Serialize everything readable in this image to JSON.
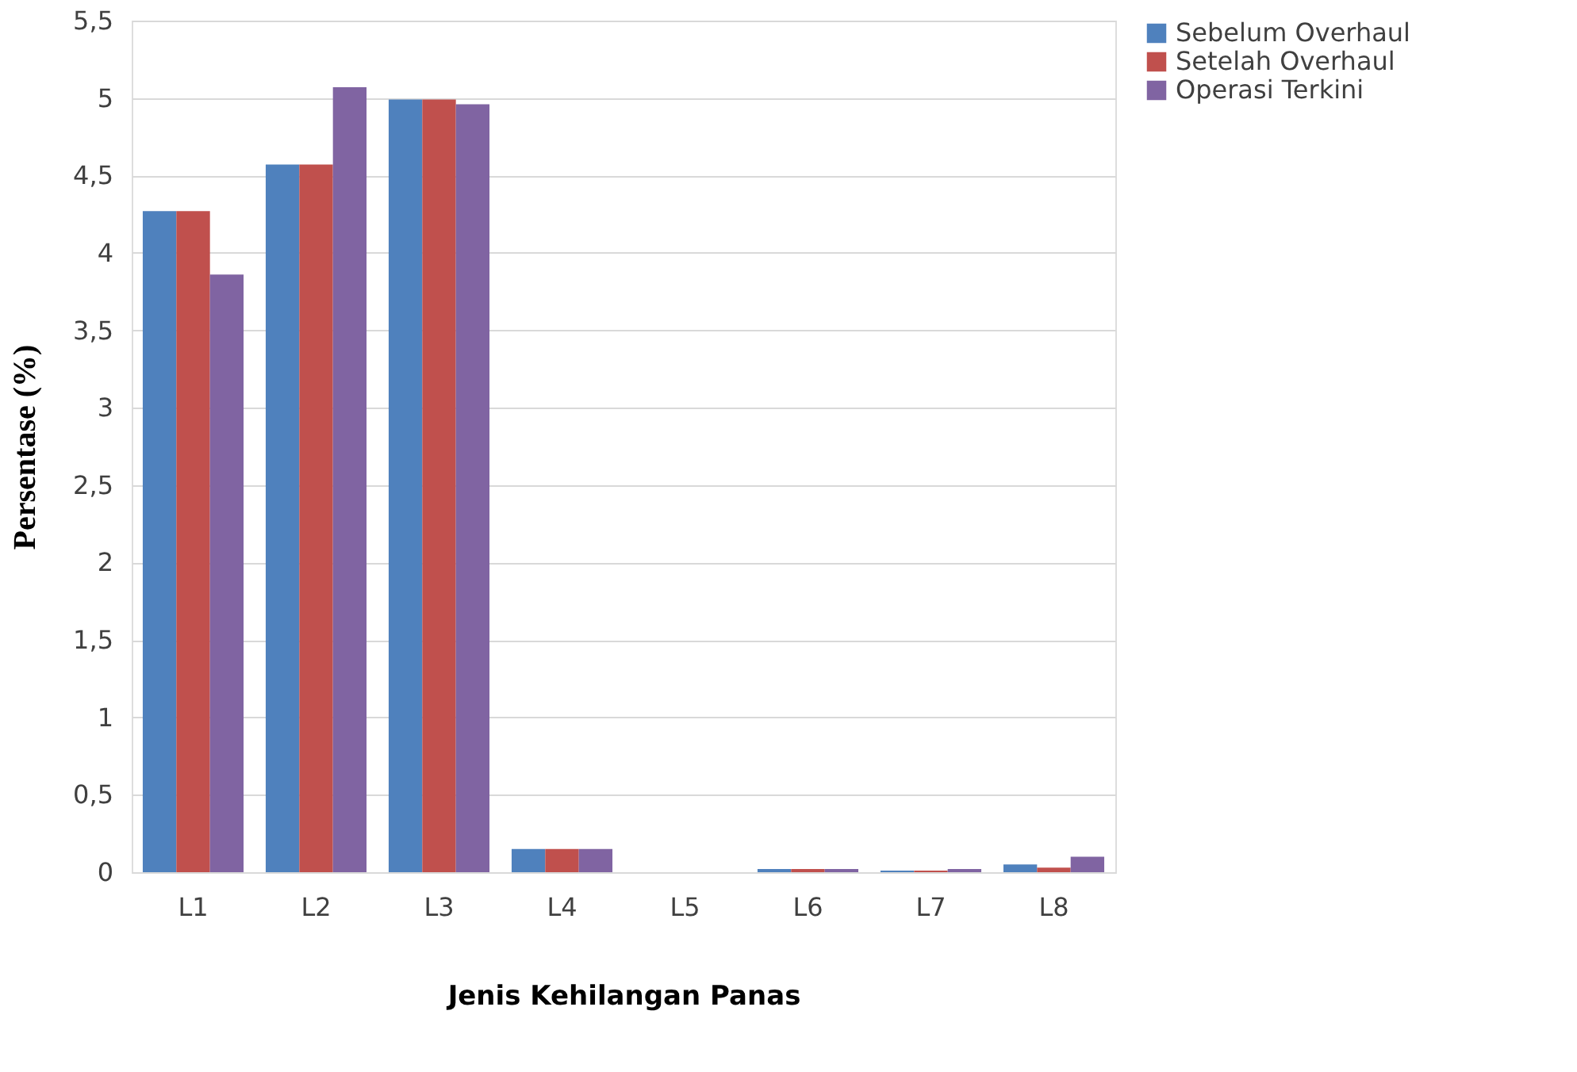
{
  "chart_data": {
    "type": "bar",
    "xlabel": "Jenis Kehilangan Panas",
    "ylabel": "Persentase (%)",
    "categories": [
      "L1",
      "L2",
      "L3",
      "L4",
      "L5",
      "L6",
      "L7",
      "L8"
    ],
    "series": [
      {
        "name": "Sebelum Overhaul",
        "color": "#4f81bd",
        "values": [
          4.27,
          4.57,
          4.99,
          0.15,
          0,
          0.02,
          0.01,
          0.05
        ]
      },
      {
        "name": "Setelah Overhaul",
        "color": "#c0504d",
        "values": [
          4.27,
          4.57,
          4.99,
          0.15,
          0,
          0.02,
          0.01,
          0.03
        ]
      },
      {
        "name": "Operasi Terkini",
        "color": "#8064a2",
        "values": [
          3.86,
          5.07,
          4.96,
          0.15,
          0,
          0.02,
          0.02,
          0.1
        ]
      }
    ],
    "ylim": [
      0,
      5.5
    ],
    "yticks": [
      0,
      {
        "value": 0.5,
        "label": "0,5"
      },
      1,
      {
        "value": 1.5,
        "label": "1,5"
      },
      2,
      {
        "value": 2.5,
        "label": "2,5"
      },
      3,
      {
        "value": 3.5,
        "label": "3,5"
      },
      4,
      {
        "value": 4.5,
        "label": "4,5"
      },
      5,
      {
        "value": 5.5,
        "label": "5,5"
      }
    ],
    "grid": "y",
    "legend": "right"
  }
}
